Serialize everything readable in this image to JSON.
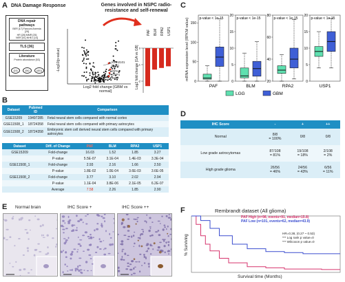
{
  "panels": {
    "a": "A",
    "b": "B",
    "c": "C",
    "d": "D",
    "e": "E",
    "f": "F"
  },
  "panelA": {
    "title": "DNA Damage Response",
    "box_pathways_title": "DNA repair pathways",
    "pathway_lines": [
      "BER [17]  Fanconi Anemia [25]",
      "HR [28]       MMR [25]",
      "NER [51]   NHEJ [14]"
    ],
    "box_tls": "TLS [36]",
    "box_lit_title": "Literature",
    "box_lit_sub": "Protein abundance [53]",
    "bubbles": [
      "[19]",
      "[94]",
      "[401]"
    ],
    "arrow_caption": "Genes involved in NSPC radio-resistance and self-renewal",
    "volcano_ylabel": "-Log10(p-value)",
    "volcano_xlabel": "Log2 fold change [GBM vs normal]",
    "volcano_labels": [
      "KIAA0101 (PAF)",
      "RPA2",
      "USP1",
      "BLM"
    ],
    "bar_ylabel": "Log2 fold change [GA vs GB]",
    "bar_genes": [
      "PAF",
      "BLM",
      "RPA2",
      "USP1"
    ],
    "bar_values": [
      -2.3,
      -1.3,
      -1.2,
      -1.1
    ],
    "bar_color": "#d62a1e"
  },
  "panelB": {
    "headers": [
      "Dataset",
      "Pubmed ID",
      "Comparison"
    ],
    "rows": [
      [
        "GSE15209",
        "19497285",
        "Fetal neural stem cells compared with normal cortex"
      ],
      [
        "GSE11508_1",
        "18724358",
        "Fetal neural stem cells compared with primary astrocytes"
      ],
      [
        "GSE11508_2",
        "18724358",
        "Embryonic stem cell derived neural stem cells compared with primary astrocytes"
      ]
    ],
    "headers2": [
      "Dataset",
      "Diff. of Change",
      "PAF",
      "BLM",
      "RPA2",
      "USP1"
    ],
    "rows2": [
      [
        "GSE15209",
        "Fold-change",
        "16.03",
        "1.52",
        "1.85",
        "3.27"
      ],
      [
        "",
        "P-value",
        "5.5E-07",
        "3.1E-04",
        "1.4E-03",
        "3.3E-04"
      ],
      [
        "GSE11508_1",
        "Fold-change",
        "2.93",
        "2.16",
        "1.66",
        "2.50"
      ],
      [
        "",
        "P-value",
        "1.8E-02",
        "1.0E-04",
        "3.6E-03",
        "3.6E-05"
      ],
      [
        "GSE11508_2",
        "Fold-change",
        "3.77",
        "3.10",
        "2.02",
        "2.94"
      ],
      [
        "",
        "P-value",
        "1.1E-04",
        "3.8E-06",
        "2.1E-05",
        "6.2E-07"
      ],
      [
        "",
        "Average",
        "7.58",
        "2.26",
        "1.85",
        "2.90"
      ]
    ]
  },
  "panelC": {
    "ylabel": "mRNA expression level (RPKM value)",
    "pvalue": "p-value < 1e-15",
    "legend": [
      "LGG",
      "GBM"
    ],
    "colors": {
      "LGG": "#5fe0b0",
      "GBM": "#3f5fd6"
    },
    "chart_data": {
      "type": "box",
      "genes": [
        "PAF",
        "BLM",
        "RPA2",
        "USP1"
      ],
      "yticks": [
        [
          0,
          50,
          100,
          150
        ],
        [
          0,
          5,
          10,
          15,
          20
        ],
        [
          20,
          40,
          60,
          80
        ],
        [
          0,
          5,
          10,
          15,
          20
        ]
      ],
      "ylim": [
        [
          0,
          170
        ],
        [
          0,
          20
        ],
        [
          20,
          80
        ],
        [
          0,
          20
        ]
      ],
      "LGG": [
        {
          "whisk_lo": 0,
          "q1": 5,
          "med": 8,
          "q3": 18,
          "whisk_hi": 40
        },
        {
          "whisk_lo": 0,
          "q1": 1,
          "med": 1.6,
          "q3": 4,
          "whisk_hi": 8.5
        },
        {
          "whisk_lo": 20,
          "q1": 27,
          "med": 30,
          "q3": 34,
          "whisk_hi": 44
        },
        {
          "whisk_lo": 4,
          "q1": 7.5,
          "med": 9,
          "q3": 10.5,
          "whisk_hi": 15
        }
      ],
      "GBM": [
        {
          "whisk_lo": 0,
          "q1": 38,
          "med": 62,
          "q3": 88,
          "whisk_hi": 160
        },
        {
          "whisk_lo": 0,
          "q1": 1.5,
          "med": 3.8,
          "q3": 6,
          "whisk_hi": 12
        },
        {
          "whisk_lo": 22,
          "q1": 32,
          "med": 40,
          "q3": 50,
          "whisk_hi": 76
        },
        {
          "whisk_lo": 4,
          "q1": 9,
          "med": 12,
          "q3": 15,
          "whisk_hi": 19
        }
      ]
    }
  },
  "panelD": {
    "headers": [
      "IHC Score",
      "-",
      "+",
      "++"
    ],
    "rows": [
      [
        "Normal",
        "8/8\n= 100%",
        "0/8",
        "0/8"
      ],
      [
        "Low grade astrocytomas",
        "87/108\n= 81%",
        "19/108\n= 18%",
        "2/108\n= 2%"
      ],
      [
        "High grade glioma",
        "26/56\n= 46%",
        "24/56\n= 43%",
        "6/56\n= 11%"
      ]
    ]
  },
  "panelE": {
    "titles": [
      "Normal brain",
      "IHC Score +",
      "IHC Score ++"
    ]
  },
  "panelF": {
    "title": "Rembrandt dataset (All glioma)",
    "legend_high": "PAF High  (n=98, events=91, median=15.8)",
    "legend_low": "PAF Low  (n=101, events=62, median=43.9)",
    "hr": "HR=0.38, (0.27 ~ 0.53)",
    "test1": "*** Log rank p value=0",
    "test2": "*** Wilcoxon p value=0",
    "xlabel": "Survival time (Months)",
    "ylabel": "% Surviving",
    "colors": {
      "high": "#d6336c",
      "low": "#3a4ccf"
    },
    "chart_data": {
      "type": "line",
      "series": [
        {
          "name": "PAF High",
          "x": [
            0,
            5,
            10,
            15,
            20,
            30,
            40,
            60,
            80,
            100,
            120,
            140,
            160
          ],
          "y": [
            100,
            85,
            65,
            50,
            38,
            25,
            17,
            10,
            8,
            6,
            6,
            5,
            5
          ]
        },
        {
          "name": "PAF Low",
          "x": [
            0,
            10,
            20,
            30,
            44,
            60,
            80,
            100,
            120,
            140,
            160
          ],
          "y": [
            100,
            92,
            78,
            65,
            50,
            42,
            37,
            35,
            33,
            33,
            33
          ]
        }
      ],
      "xlim": [
        0,
        160
      ],
      "ylim": [
        0,
        100
      ]
    }
  }
}
